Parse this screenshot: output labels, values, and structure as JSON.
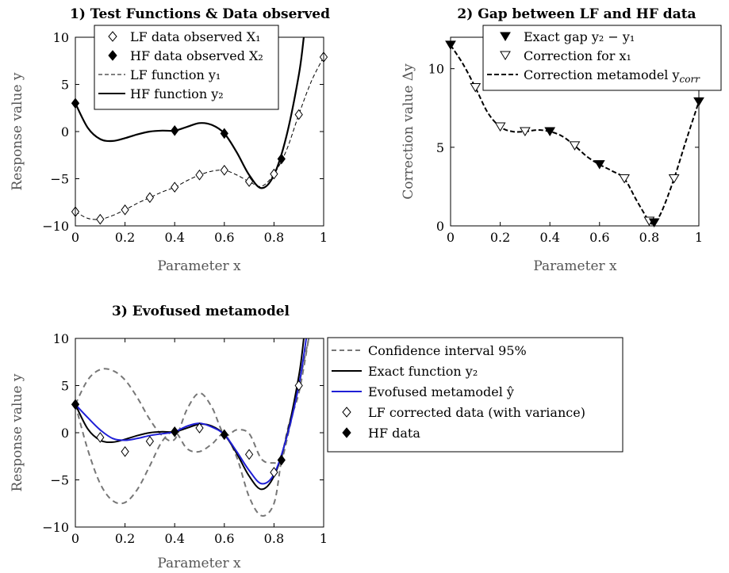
{
  "chart_data": [
    {
      "type": "line",
      "title": "1) Test Functions & Data observed",
      "xlabel": "Parameter x",
      "ylabel": "Response value y",
      "xlim": [
        0,
        1
      ],
      "ylim": [
        -10,
        10
      ],
      "xticks": [
        "0",
        "0.2",
        "0.4",
        "0.6",
        "0.8",
        "1"
      ],
      "yticks": [
        "−10",
        "−5",
        "0",
        "5",
        "10"
      ],
      "legend_position": "top-center",
      "legend": [
        {
          "text": "LF data observed X₁",
          "marker": "diamond-open"
        },
        {
          "text": "HF data observed X₂",
          "marker": "diamond-filled"
        },
        {
          "text": "LF function y₁",
          "style": "dashed"
        },
        {
          "text": "HF function y₂",
          "style": "solid"
        }
      ],
      "series": [
        {
          "x": [
            0,
            0.1,
            0.2,
            0.3,
            0.4,
            0.5,
            0.6,
            0.7,
            0.8,
            0.9,
            1
          ],
          "values": [
            -8.5,
            -9.3,
            -8.3,
            -7.0,
            -5.9,
            -4.6,
            -4.1,
            -5.3,
            -4.5,
            1.8,
            7.9
          ]
        },
        {
          "x": [
            0,
            0.4,
            0.6,
            0.83
          ],
          "values": [
            3.0,
            0.1,
            -0.2,
            -2.9
          ]
        },
        {
          "x": [
            0,
            0.05,
            0.1,
            0.15,
            0.2,
            0.25,
            0.3,
            0.35,
            0.4,
            0.45,
            0.5,
            0.55,
            0.6,
            0.65,
            0.7,
            0.75,
            0.8,
            0.85,
            0.9,
            0.95,
            1
          ],
          "values": [
            -8.5,
            -9.2,
            -9.3,
            -8.9,
            -8.3,
            -7.6,
            -7.0,
            -6.4,
            -5.9,
            -5.2,
            -4.6,
            -4.2,
            -4.1,
            -4.6,
            -5.3,
            -5.8,
            -4.5,
            -2.0,
            1.8,
            5.3,
            7.9
          ]
        },
        {
          "x": [
            0,
            0.05,
            0.1,
            0.15,
            0.2,
            0.25,
            0.3,
            0.35,
            0.4,
            0.45,
            0.5,
            0.55,
            0.6,
            0.65,
            0.7,
            0.75,
            0.8,
            0.85,
            0.9,
            0.92
          ],
          "values": [
            3.0,
            0.4,
            -0.8,
            -1.0,
            -0.7,
            -0.3,
            0.0,
            0.1,
            0.1,
            0.5,
            0.9,
            0.7,
            -0.2,
            -2.2,
            -4.6,
            -6.0,
            -4.6,
            -0.5,
            6.0,
            10.0
          ]
        }
      ]
    },
    {
      "type": "line",
      "title": "2) Gap between LF and HF data",
      "xlabel": "Parameter x",
      "ylabel": "Correction value Δy",
      "xlim": [
        0,
        1
      ],
      "ylim": [
        0,
        12
      ],
      "xticks": [
        "0",
        "0.2",
        "0.4",
        "0.6",
        "0.8",
        "1"
      ],
      "yticks": [
        "0",
        "5",
        "10"
      ],
      "legend_position": "top-right",
      "legend": [
        {
          "text": "Exact gap y₂ − y₁",
          "marker": "triangle-down-filled"
        },
        {
          "text": "Correction for x₁",
          "marker": "triangle-down-open"
        },
        {
          "text": "Correction metamodel y",
          "sub": "corr",
          "style": "dashed-thick"
        }
      ],
      "series": [
        {
          "x": [
            0,
            0.4,
            0.6,
            0.82,
            1
          ],
          "values": [
            11.5,
            6.0,
            3.9,
            0.2,
            7.9
          ]
        },
        {
          "x": [
            0.1,
            0.2,
            0.3,
            0.5,
            0.7,
            0.8,
            0.9
          ],
          "values": [
            8.8,
            6.3,
            6.0,
            5.1,
            3.0,
            0.3,
            3.0
          ]
        },
        {
          "x": [
            0,
            0.05,
            0.1,
            0.15,
            0.2,
            0.25,
            0.3,
            0.35,
            0.4,
            0.45,
            0.5,
            0.55,
            0.6,
            0.65,
            0.7,
            0.75,
            0.8,
            0.82,
            0.85,
            0.9,
            0.95,
            1
          ],
          "values": [
            11.5,
            10.3,
            8.8,
            7.2,
            6.3,
            6.0,
            6.0,
            6.1,
            6.0,
            5.7,
            5.1,
            4.4,
            3.9,
            3.5,
            3.0,
            1.6,
            0.3,
            0.2,
            0.9,
            3.0,
            5.5,
            7.9
          ]
        }
      ]
    },
    {
      "type": "line",
      "title": "3) Evofused metamodel",
      "xlabel": "Parameter x",
      "ylabel": "Response value y",
      "xlim": [
        0,
        1
      ],
      "ylim": [
        -10,
        10
      ],
      "xticks": [
        "0",
        "0.2",
        "0.4",
        "0.6",
        "0.8",
        "1"
      ],
      "yticks": [
        "−10",
        "−5",
        "0",
        "5",
        "10"
      ],
      "legend_position": "right",
      "legend": [
        {
          "text": "Confidence interval 95%",
          "style": "dashed-gray"
        },
        {
          "text": "Exact function y₂",
          "style": "solid"
        },
        {
          "text": "Evofused metamodel ŷ",
          "style": "solid-blue"
        },
        {
          "text": "LF corrected data (with variance)",
          "marker": "diamond-open"
        },
        {
          "text": "HF data",
          "marker": "diamond-filled"
        }
      ],
      "series": [
        {
          "x": [
            0,
            0.05,
            0.1,
            0.15,
            0.2,
            0.25,
            0.3,
            0.35,
            0.4,
            0.45,
            0.5,
            0.55,
            0.6,
            0.65,
            0.7,
            0.75,
            0.8,
            0.83,
            0.86,
            0.9,
            0.94
          ],
          "values": [
            3.0,
            5.6,
            6.7,
            6.6,
            5.6,
            3.7,
            1.4,
            -0.3,
            -0.7,
            2.5,
            4.2,
            2.7,
            -0.2,
            0.3,
            -0.1,
            -2.8,
            -3.2,
            -2.9,
            0.2,
            5.0,
            10.0
          ]
        },
        {
          "x": [
            0,
            0.05,
            0.1,
            0.15,
            0.2,
            0.25,
            0.3,
            0.35,
            0.4,
            0.45,
            0.5,
            0.55,
            0.6,
            0.65,
            0.7,
            0.75,
            0.8,
            0.83,
            0.86,
            0.9,
            0.94
          ],
          "values": [
            3.0,
            -1.8,
            -5.4,
            -7.2,
            -7.4,
            -6.0,
            -3.5,
            -0.9,
            0.1,
            -1.7,
            -2.0,
            -1.2,
            -0.2,
            -2.6,
            -6.8,
            -8.8,
            -7.5,
            -2.9,
            0.9,
            4.2,
            10.0
          ]
        },
        {
          "x": [
            0,
            0.05,
            0.1,
            0.15,
            0.2,
            0.25,
            0.3,
            0.35,
            0.4,
            0.45,
            0.5,
            0.55,
            0.6,
            0.65,
            0.7,
            0.75,
            0.8,
            0.85,
            0.9,
            0.92
          ],
          "values": [
            3.0,
            0.4,
            -0.8,
            -1.0,
            -0.7,
            -0.3,
            0.0,
            0.1,
            0.1,
            0.5,
            0.9,
            0.7,
            -0.2,
            -2.2,
            -4.6,
            -6.0,
            -4.6,
            -0.5,
            6.0,
            10.0
          ]
        },
        {
          "x": [
            0,
            0.05,
            0.1,
            0.15,
            0.2,
            0.25,
            0.3,
            0.35,
            0.4,
            0.45,
            0.5,
            0.55,
            0.6,
            0.65,
            0.7,
            0.75,
            0.8,
            0.85,
            0.9,
            0.93
          ],
          "values": [
            3.0,
            1.6,
            0.3,
            -0.6,
            -0.8,
            -0.6,
            -0.3,
            -0.1,
            0.1,
            0.7,
            1.0,
            0.6,
            -0.2,
            -2.0,
            -4.0,
            -5.4,
            -4.4,
            -0.6,
            5.0,
            10.0
          ]
        },
        {
          "x": [
            0.1,
            0.2,
            0.3,
            0.5,
            0.7,
            0.8,
            0.9
          ],
          "values": [
            -0.5,
            -2.0,
            -0.9,
            0.5,
            -2.3,
            -4.2,
            5.0
          ]
        },
        {
          "x": [
            0,
            0.4,
            0.6,
            0.83
          ],
          "values": [
            3.0,
            0.1,
            -0.2,
            -2.9
          ]
        }
      ]
    }
  ]
}
